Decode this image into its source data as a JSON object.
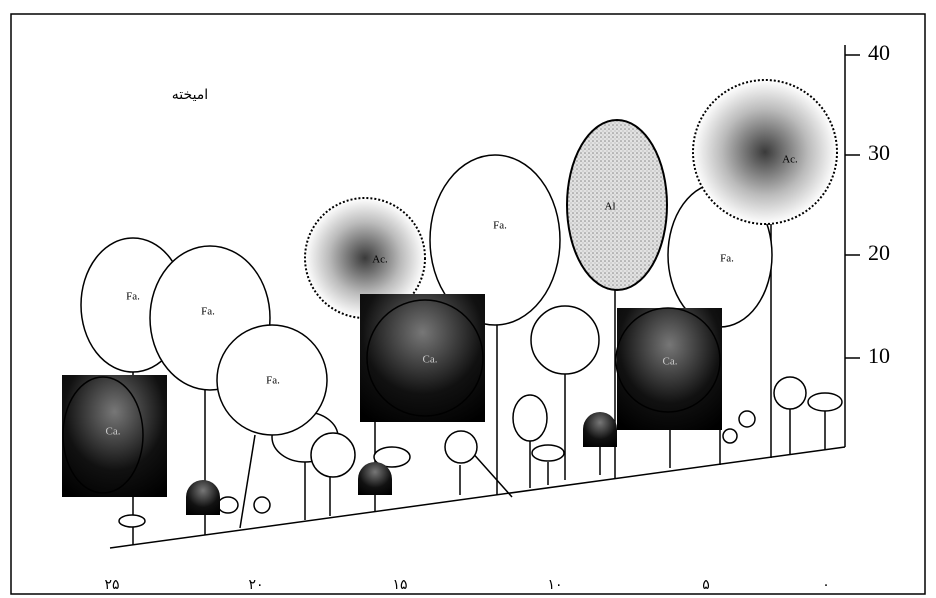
{
  "title": "امیخته",
  "y_axis": {
    "ticks": [
      "40",
      "30",
      "20",
      "10"
    ]
  },
  "x_axis": {
    "ticks": [
      "۲۵",
      "۲۰",
      "۱۵",
      "۱۰",
      "۵",
      "۰"
    ]
  },
  "trees": [
    {
      "label": "Fa."
    },
    {
      "label": "Fa."
    },
    {
      "label": "Fa."
    },
    {
      "label": "Ac."
    },
    {
      "label": "Fa."
    },
    {
      "label": "Al"
    },
    {
      "label": "Fa."
    },
    {
      "label": "Ac."
    },
    {
      "label": "Ca."
    },
    {
      "label": "Ca."
    },
    {
      "label": "Ca."
    }
  ]
}
